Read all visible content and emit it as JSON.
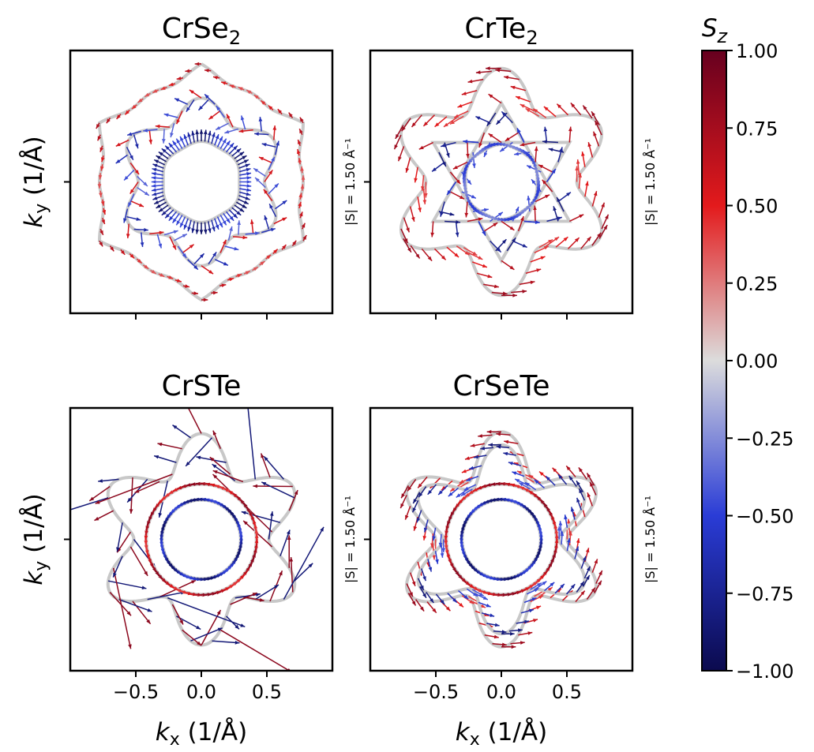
{
  "chart_data": [
    {
      "type": "quiver",
      "title_base": "CrSe",
      "title_sub": "2",
      "xlabel_var": "k",
      "xlabel_sub": "x",
      "xlabel_unit": " (1/Å)",
      "ylabel_var": "k",
      "ylabel_sub": "y",
      "ylabel_unit": " (1/Å)",
      "scale_label": "|S| = 1.50 Å⁻¹",
      "xlim": [
        -1.0,
        1.0
      ],
      "ylim": [
        -1.0,
        1.0
      ],
      "xticks": [
        "−0.5",
        "0.0",
        "0.5"
      ],
      "show_xticklabels": false,
      "show_ylabel": true,
      "contours": [
        {
          "kind": "hexagon",
          "radius": 0.88,
          "amp": 0.02,
          "sz": 0.7,
          "arrow_len": 0.05,
          "mode": "tangent"
        },
        {
          "kind": "star",
          "radius": 0.56,
          "amp": 0.14,
          "sz": -0.7,
          "arrow_len": 0.11,
          "mode": "mixed"
        },
        {
          "kind": "circle",
          "radius": 0.3,
          "amp": 0.03,
          "sz": -0.9,
          "arrow_len": 0.09,
          "mode": "radial"
        }
      ]
    },
    {
      "type": "quiver",
      "title_base": "CrTe",
      "title_sub": "2",
      "xlabel_var": "k",
      "xlabel_sub": "x",
      "xlabel_unit": " (1/Å)",
      "ylabel_var": "k",
      "ylabel_sub": "y",
      "ylabel_unit": " (1/Å)",
      "scale_label": "|S| = 1.50 Å⁻¹",
      "xlim": [
        -1.0,
        1.0
      ],
      "ylim": [
        -1.0,
        1.0
      ],
      "xticks": [
        "−0.5",
        "0.0",
        "0.5"
      ],
      "show_xticklabels": false,
      "show_ylabel": false,
      "contours": [
        {
          "kind": "star",
          "radius": 0.72,
          "amp": 0.2,
          "sz": 0.8,
          "arrow_len": 0.12,
          "mode": "tangent"
        },
        {
          "kind": "hexagram",
          "radius": 0.6,
          "amp": 0.0,
          "sz": -0.85,
          "arrow_len": 0.12,
          "mode": "mixed"
        },
        {
          "kind": "circle",
          "radius": 0.28,
          "amp": 0.02,
          "sz": -0.5,
          "arrow_len": 0.08,
          "mode": "tangent"
        }
      ]
    },
    {
      "type": "quiver",
      "title_base": "CrSTe",
      "title_sub": "",
      "xlabel_var": "k",
      "xlabel_sub": "x",
      "xlabel_unit": " (1/Å)",
      "ylabel_var": "k",
      "ylabel_sub": "y",
      "ylabel_unit": " (1/Å)",
      "scale_label": "|S| = 1.50 Å⁻¹",
      "xlim": [
        -1.0,
        1.0
      ],
      "ylim": [
        -1.0,
        1.0
      ],
      "xticks": [
        "−0.5",
        "0.0",
        "0.5"
      ],
      "show_xticklabels": true,
      "show_ylabel": true,
      "contours": [
        {
          "kind": "star",
          "radius": 0.66,
          "amp": 0.22,
          "sz": -0.8,
          "arrow_len": 0.14,
          "mode": "wild"
        },
        {
          "kind": "circle",
          "radius": 0.42,
          "amp": 0.0,
          "sz": 0.85,
          "arrow_len": 0.08,
          "mode": "tangent"
        },
        {
          "kind": "circle",
          "radius": 0.3,
          "amp": 0.0,
          "sz": -0.9,
          "arrow_len": 0.08,
          "mode": "tangent"
        }
      ]
    },
    {
      "type": "quiver",
      "title_base": "CrSeTe",
      "title_sub": "",
      "xlabel_var": "k",
      "xlabel_sub": "x",
      "xlabel_unit": " (1/Å)",
      "ylabel_var": "k",
      "ylabel_sub": "y",
      "ylabel_unit": " (1/Å)",
      "scale_label": "|S| = 1.50 Å⁻¹",
      "xlim": [
        -1.0,
        1.0
      ],
      "ylim": [
        -1.0,
        1.0
      ],
      "xticks": [
        "−0.5",
        "0.0",
        "0.5"
      ],
      "show_xticklabels": true,
      "show_ylabel": false,
      "contours": [
        {
          "kind": "star",
          "radius": 0.66,
          "amp": 0.24,
          "sz": 0.8,
          "arrow_len": 0.11,
          "mode": "tangent"
        },
        {
          "kind": "star",
          "radius": 0.58,
          "amp": 0.24,
          "sz": -0.85,
          "arrow_len": 0.1,
          "mode": "tangent"
        },
        {
          "kind": "circle",
          "radius": 0.42,
          "amp": 0.0,
          "sz": 0.85,
          "arrow_len": 0.08,
          "mode": "tangent"
        },
        {
          "kind": "circle",
          "radius": 0.3,
          "amp": 0.0,
          "sz": -0.9,
          "arrow_len": 0.08,
          "mode": "tangent"
        }
      ]
    }
  ],
  "colorbar": {
    "label_var": "S",
    "label_sub": "z",
    "range": [
      -1.0,
      1.0
    ],
    "ticks": [
      "1.00",
      "0.75",
      "0.50",
      "0.25",
      "0.00",
      "−0.25",
      "−0.50",
      "−0.75",
      "−1.00"
    ],
    "colors": {
      "max": "#67001f",
      "high": "#e31a1c",
      "mid": "#dcdcdc",
      "low": "#2a3cd6",
      "min": "#0b0a4e"
    }
  }
}
